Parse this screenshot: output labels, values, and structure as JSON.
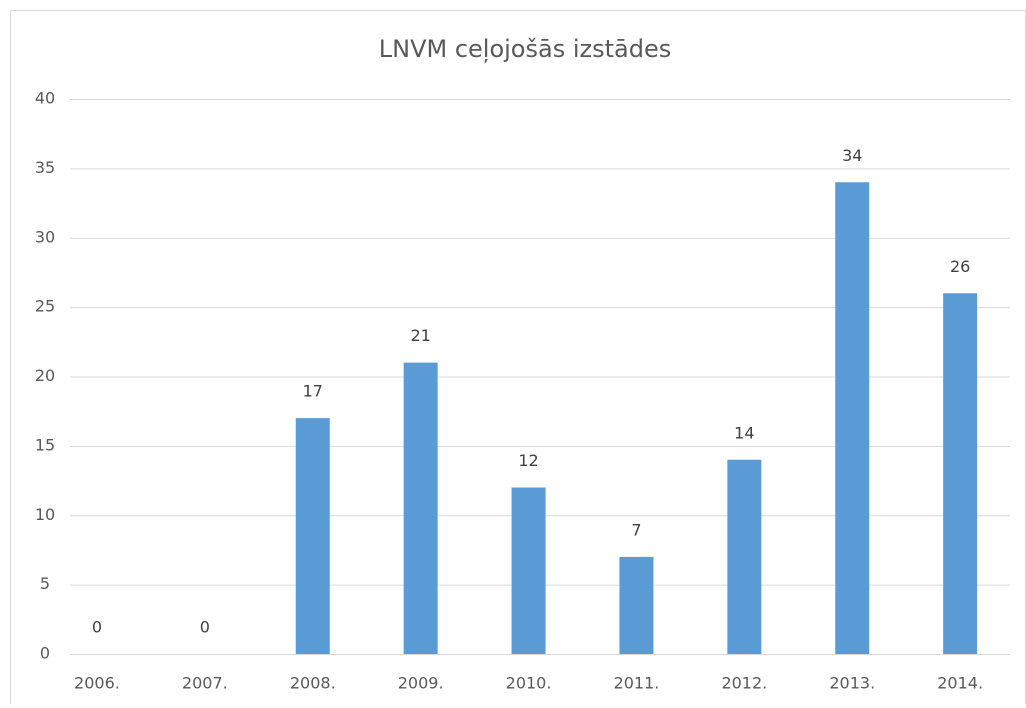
{
  "chart_data": {
    "type": "bar",
    "title": "LNVM ceļojošās izstādes",
    "categories": [
      "2006.",
      "2007.",
      "2008.",
      "2009.",
      "2010.",
      "2011.",
      "2012.",
      "2013.",
      "2014."
    ],
    "values": [
      0,
      0,
      17,
      21,
      12,
      7,
      14,
      34,
      26
    ],
    "color": "#5b9bd5",
    "ylim": [
      0,
      40
    ],
    "yticks": [
      0,
      5,
      10,
      15,
      20,
      25,
      30,
      35,
      40
    ],
    "grid": true
  }
}
